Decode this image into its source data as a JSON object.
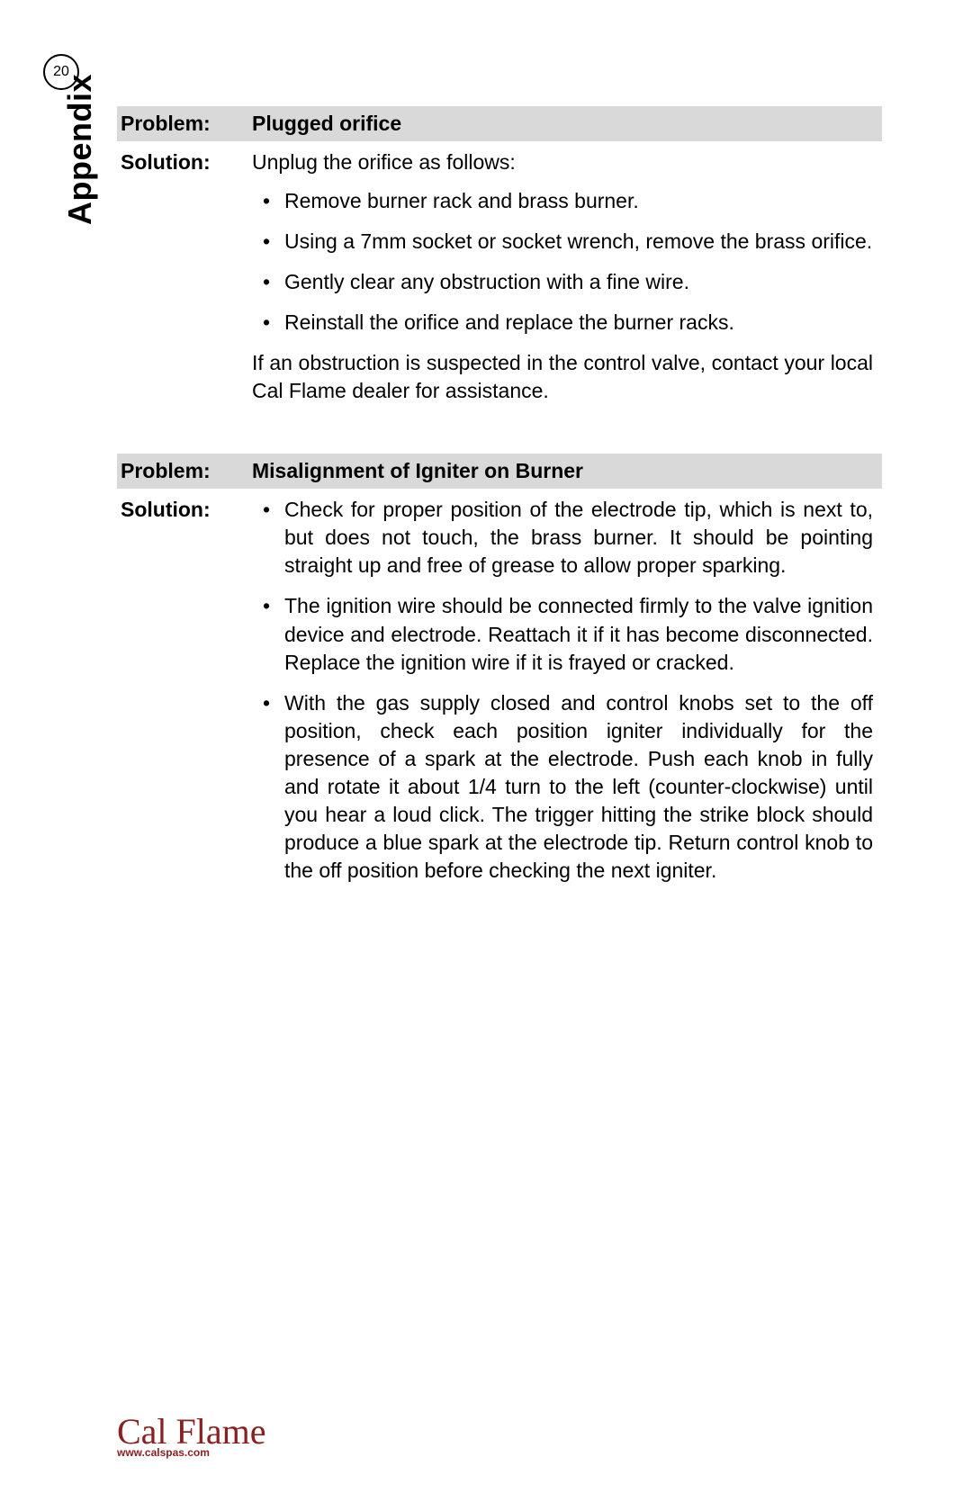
{
  "page_number": "20",
  "side_label": "Appendix",
  "labels": {
    "problem": "Problem:",
    "solution": "Solution:"
  },
  "section1": {
    "problem": "Plugged orifice",
    "solution_intro": "Unplug the orifice as follows:",
    "bullets": [
      "Remove burner rack and brass burner.",
      "Using a 7mm socket or socket wrench, remove the brass orifice.",
      "Gently clear any obstruction with a fine wire.",
      "Reinstall the orifice and replace the burner racks."
    ],
    "note": "If an obstruction is suspected in the control valve, contact your local Cal Flame dealer for assistance."
  },
  "section2": {
    "problem": "Misalignment of Igniter on Burner",
    "bullets": [
      "Check for proper position of the electrode tip, which is next to, but does not touch, the brass burner. It should be pointing straight up and free of grease to allow proper sparking.",
      "The ignition wire should be connected firmly to the valve ignition device and electrode. Reattach it if it has become disconnected. Replace the ignition wire if it is frayed or cracked.",
      "With the gas supply closed and control knobs set to the off position, check each position igniter individually for the presence of a spark at the electrode. Push each knob in fully and rotate it about 1/4 turn to the left (counter-clockwise) until you hear a loud click. The trigger hitting the strike block should produce a blue spark at the electrode tip. Return control knob to the off position before checking the next igniter."
    ]
  },
  "footer": {
    "brand": "Cal Flame",
    "url": "www.calspas.com"
  },
  "colors": {
    "row_bg": "#d9d9d9",
    "brand": "#8a1f1f"
  }
}
